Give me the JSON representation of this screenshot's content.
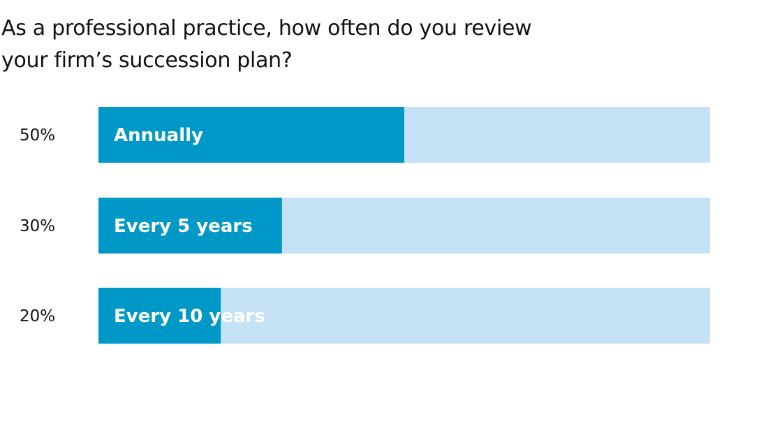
{
  "chart_data": {
    "type": "bar",
    "orientation": "horizontal",
    "title_lines": [
      "As a professional practice, how often do you review",
      "your firm’s succession plan?"
    ],
    "categories": [
      "Annually",
      "Every 5 years",
      "Every 10 years"
    ],
    "values": [
      50,
      30,
      20
    ],
    "value_labels": [
      "50%",
      "30%",
      "20%"
    ],
    "xlim": [
      0,
      100
    ],
    "grid": false,
    "legend": "none",
    "colors": {
      "bar_fill": "#0099c7",
      "bar_track": "#c4e1f5",
      "label_text": "#ffffff",
      "value_text": "#111111"
    }
  }
}
